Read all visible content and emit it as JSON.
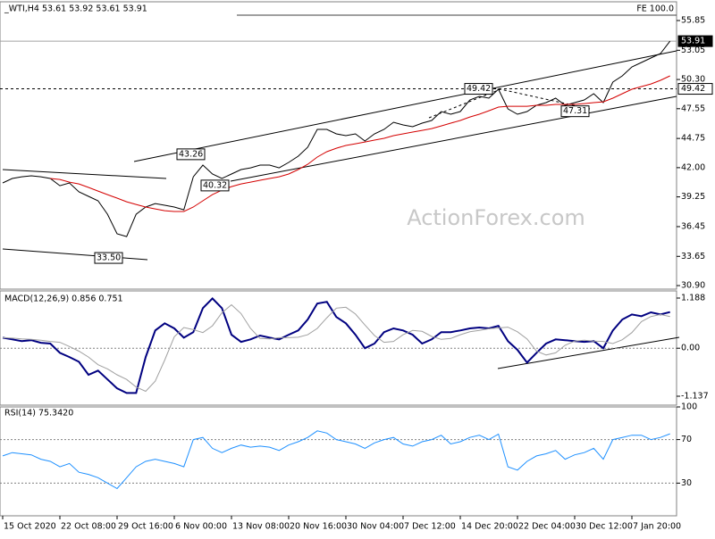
{
  "chart_data": [
    {
      "type": "line",
      "title": "_WTI,H4  53.61 53.92 53.61 53.91",
      "watermark": "ActionForex.com",
      "categories": [
        "15 Oct 2020",
        null,
        null,
        null,
        null,
        null,
        "22 Oct 08:00",
        null,
        null,
        null,
        null,
        null,
        "29 Oct 16:00",
        null,
        null,
        null,
        null,
        null,
        "6 Nov 00:00",
        null,
        null,
        null,
        null,
        null,
        "13 Nov 08:00",
        null,
        null,
        null,
        null,
        null,
        "20 Nov 16:00",
        null,
        null,
        null,
        null,
        null,
        "30 Nov 04:00",
        null,
        null,
        null,
        null,
        null,
        "7 Dec 12:00",
        null,
        null,
        null,
        null,
        null,
        "14 Dec 20:00",
        null,
        null,
        null,
        null,
        null,
        "22 Dec 04:00",
        null,
        null,
        null,
        null,
        null,
        "30 Dec 12:00",
        null,
        null,
        null,
        null,
        null,
        "7 Jan 20:00",
        null,
        null,
        null,
        null
      ],
      "series": [
        {
          "color": "#000000",
          "values": [
            40.56,
            40.98,
            41.14,
            41.23,
            41.14,
            40.98,
            40.3,
            40.56,
            39.72,
            39.3,
            38.88,
            37.61,
            35.77,
            35.51,
            37.61,
            38.29,
            38.62,
            38.46,
            38.29,
            38.03,
            41.14,
            42.24,
            41.4,
            40.98,
            41.4,
            41.82,
            41.98,
            42.24,
            42.24,
            41.98,
            42.49,
            43.08,
            43.92,
            45.6,
            45.6,
            45.18,
            45.01,
            45.18,
            44.51,
            45.18,
            45.6,
            46.27,
            46.02,
            45.85,
            46.19,
            46.44,
            47.28,
            47.03,
            47.28,
            48.37,
            48.71,
            48.54,
            49.38,
            47.53,
            47.03,
            47.28,
            47.87,
            48.12,
            48.54,
            47.87,
            48.12,
            48.37,
            48.96,
            48.12,
            50.05,
            50.64,
            51.48,
            51.9,
            52.32,
            52.74,
            53.91
          ]
        },
        {
          "color": "#d40000",
          "values": [
            null,
            null,
            null,
            null,
            null,
            40.98,
            40.89,
            40.64,
            40.47,
            40.14,
            39.8,
            39.46,
            39.13,
            38.79,
            38.54,
            38.29,
            38.12,
            37.95,
            37.87,
            37.87,
            38.29,
            38.88,
            39.46,
            39.88,
            40.22,
            40.47,
            40.64,
            40.81,
            40.98,
            41.14,
            41.4,
            41.82,
            42.32,
            43.0,
            43.5,
            43.83,
            44.09,
            44.25,
            44.42,
            44.59,
            44.76,
            45.01,
            45.18,
            45.35,
            45.51,
            45.68,
            45.93,
            46.19,
            46.44,
            46.77,
            47.03,
            47.36,
            47.7,
            47.78,
            47.78,
            47.78,
            47.87,
            47.87,
            47.95,
            47.95,
            47.95,
            48.03,
            48.12,
            48.2,
            48.54,
            48.96,
            49.38,
            49.63,
            49.88,
            50.22,
            50.64
          ]
        }
      ],
      "ylim": [
        30.65,
        57.53
      ],
      "yticks": [
        55.85,
        53.05,
        {
          "value": 50.3,
          "label": "50.30"
        },
        47.55,
        44.75,
        {
          "value": 42,
          "label": "42.00"
        },
        39.25,
        36.45,
        33.65,
        {
          "value": 30.9,
          "label": "30.90"
        }
      ],
      "hlines": [
        {
          "value": 53.91,
          "label": "53.91",
          "style": "solid"
        },
        {
          "value": 49.42,
          "label": "49.42",
          "style": "dashed"
        }
      ],
      "fe_line": {
        "value": 56.35,
        "label": "FE 100.0"
      },
      "annotations": [
        {
          "value": 43.26,
          "label": "43.26"
        },
        {
          "value": 40.32,
          "label": "40.32"
        },
        {
          "value": 33.5,
          "label": "33.50"
        },
        {
          "value": 49.42,
          "label": "49.42"
        },
        {
          "value": 47.31,
          "label": "47.31"
        }
      ]
    },
    {
      "type": "line",
      "title": "MACD(12,26,9) 0.856 0.751",
      "series": [
        {
          "color": "#000080",
          "width": 2,
          "values": [
            0.25,
            0.21,
            0.17,
            0.19,
            0.13,
            0.11,
            -0.11,
            -0.21,
            -0.32,
            -0.63,
            -0.53,
            -0.74,
            -0.95,
            -1.06,
            -1.06,
            -0.21,
            0.42,
            0.59,
            0.47,
            0.25,
            0.38,
            0.95,
            1.18,
            0.95,
            0.32,
            0.15,
            0.21,
            0.3,
            0.25,
            0.21,
            0.32,
            0.42,
            0.68,
            1.06,
            1.1,
            0.74,
            0.59,
            0.32,
            0,
            0.11,
            0.38,
            0.47,
            0.42,
            0.32,
            0.11,
            0.21,
            0.38,
            0.38,
            0.42,
            0.47,
            0.49,
            0.47,
            0.53,
            0.17,
            -0.04,
            -0.34,
            -0.11,
            0.11,
            0.21,
            0.19,
            0.17,
            0.15,
            0.17,
            0,
            0.42,
            0.68,
            0.8,
            0.76,
            0.85,
            0.8,
            0.856
          ]
        },
        {
          "color": "#a0a0a0",
          "width": 1,
          "values": [
            0.25,
            0.24,
            0.22,
            0.21,
            0.19,
            0.16,
            0.14,
            0.04,
            -0.07,
            -0.21,
            -0.39,
            -0.49,
            -0.63,
            -0.74,
            -0.92,
            -1.02,
            -0.78,
            -0.28,
            0.27,
            0.49,
            0.44,
            0.37,
            0.53,
            0.84,
            1.03,
            0.82,
            0.47,
            0.23,
            0.22,
            0.25,
            0.25,
            0.26,
            0.32,
            0.47,
            0.72,
            0.95,
            0.97,
            0.81,
            0.55,
            0.3,
            0.14,
            0.16,
            0.32,
            0.42,
            0.4,
            0.28,
            0.21,
            0.23,
            0.32,
            0.39,
            0.42,
            0.46,
            0.48,
            0.5,
            0.39,
            0.22,
            -0.07,
            -0.16,
            -0.11,
            0.07,
            0.17,
            0.19,
            0.17,
            0.16,
            0.11,
            0.2,
            0.37,
            0.63,
            0.75,
            0.8,
            0.751
          ]
        }
      ],
      "ylim": [
        -1.327,
        1.336
      ],
      "yticks": [
        1.188,
        {
          "value": 0,
          "label": "0.00",
          "grid": true
        },
        -1.137
      ]
    },
    {
      "type": "line",
      "title": "RSI(14) 75.3420",
      "series": [
        {
          "color": "#1e90ff",
          "width": 1,
          "values": [
            55,
            58,
            57,
            56,
            52,
            50,
            45,
            48,
            40,
            38,
            35,
            30,
            25,
            35,
            45,
            50,
            52,
            50,
            48,
            45,
            70,
            72,
            62,
            58,
            62,
            65,
            63,
            64,
            63,
            60,
            65,
            68,
            72,
            78,
            76,
            70,
            68,
            66,
            62,
            67,
            70,
            72,
            66,
            64,
            68,
            70,
            74,
            66,
            68,
            72,
            74,
            70,
            75,
            45,
            42,
            50,
            55,
            57,
            60,
            52,
            56,
            58,
            62,
            52,
            70,
            72,
            74,
            74,
            70,
            72,
            75.342
          ]
        }
      ],
      "ylim": [
        0,
        100
      ],
      "yticks": [
        100,
        70,
        30
      ],
      "grid": true
    }
  ]
}
